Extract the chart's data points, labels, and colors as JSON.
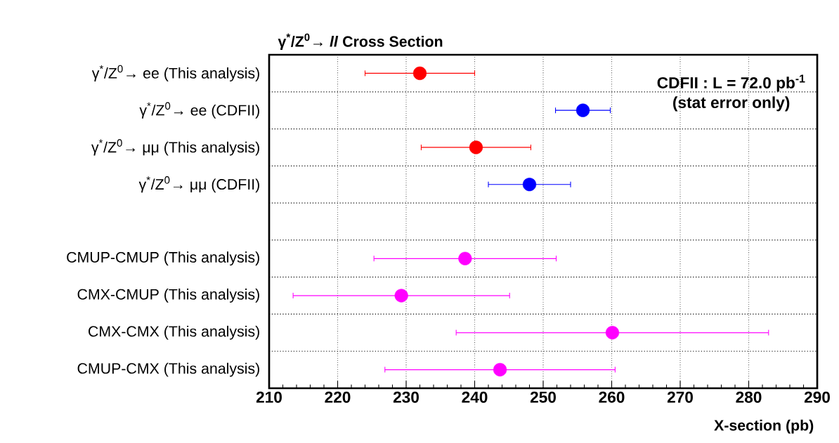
{
  "chart_data": {
    "type": "scatter",
    "orientation": "horizontal",
    "title": "γ$^{*}$/Z$^{0}$→ *ll* Cross Section",
    "xlabel": "X-section (pb)",
    "categories": [
      "γ$^{*}$/Z$^{0}$→ ee (This analysis)",
      "γ$^{*}$/Z$^{0}$→ ee (CDFII)",
      "γ$^{*}$/Z$^{0}$→ μμ (This analysis)",
      "γ$^{*}$/Z$^{0}$→ μμ (CDFII)",
      null,
      "CMUP-CMUP (This analysis)",
      "CMX-CMUP (This analysis)",
      "CMX-CMX (This analysis)",
      "CMUP-CMX (This analysis)"
    ],
    "values": [
      232.0,
      255.8,
      240.2,
      248.0,
      null,
      238.6,
      229.3,
      260.1,
      243.7
    ],
    "errors": [
      8.0,
      4.0,
      8.0,
      6.0,
      null,
      13.3,
      15.8,
      22.8,
      16.8
    ],
    "colors": [
      "#ff0000",
      "#0000ff",
      "#ff0000",
      "#0000ff",
      null,
      "#ff00ff",
      "#ff00ff",
      "#ff00ff",
      "#ff00ff"
    ],
    "xlim": [
      210,
      290
    ],
    "xticks": [
      210,
      220,
      230,
      240,
      250,
      260,
      270,
      280,
      290
    ],
    "grid": true,
    "marker": "circle",
    "annotations": [
      "CDFII : L = 72.0 pb$^{-1}$",
      "(stat error only)"
    ]
  }
}
